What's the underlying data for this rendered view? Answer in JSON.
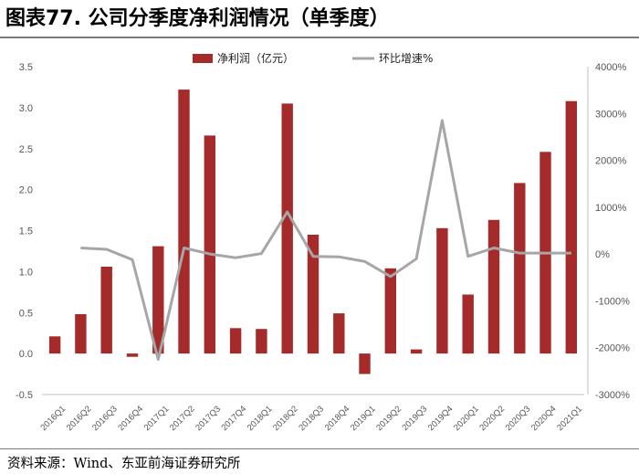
{
  "title": "图表77. 公司分季度净利润情况（单季度）",
  "source": "资料来源：Wind、东亚前海证券研究所",
  "chart_data": {
    "type": "bar+line",
    "categories": [
      "2016Q1",
      "2016Q2",
      "2016Q3",
      "2016Q4",
      "2017Q1",
      "2017Q2",
      "2017Q3",
      "2017Q4",
      "2018Q1",
      "2018Q2",
      "2018Q3",
      "2018Q4",
      "2019Q1",
      "2019Q2",
      "2019Q3",
      "2019Q4",
      "2020Q1",
      "2020Q2",
      "2020Q3",
      "2020Q4",
      "2021Q1"
    ],
    "series": [
      {
        "name": "净利润（亿元）",
        "type": "bar",
        "axis": "left",
        "color": "#a52a2a",
        "values": [
          0.21,
          0.48,
          1.06,
          -0.04,
          1.31,
          3.22,
          2.66,
          0.31,
          0.3,
          3.05,
          1.45,
          0.49,
          -0.25,
          1.04,
          0.05,
          1.53,
          0.72,
          1.63,
          2.08,
          2.46,
          3.08
        ]
      },
      {
        "name": "环比增速%",
        "type": "line",
        "axis": "right",
        "color": "#a6a6a6",
        "values": [
          null,
          130,
          100,
          -120,
          -2250,
          130,
          0,
          -80,
          10,
          900,
          -50,
          -60,
          -160,
          -480,
          -100,
          2850,
          -50,
          130,
          20,
          20,
          20
        ]
      }
    ],
    "left_axis": {
      "ylim": [
        -0.5,
        3.5
      ],
      "ticks": [
        "-0.5",
        "0.0",
        "0.5",
        "1.0",
        "1.5",
        "2.0",
        "2.5",
        "3.0",
        "3.5"
      ]
    },
    "right_axis": {
      "ylim": [
        -3000,
        4000
      ],
      "ticks": [
        "-3000%",
        "-2000%",
        "-1000%",
        "0%",
        "1000%",
        "2000%",
        "3000%",
        "4000%"
      ]
    },
    "legend_position": "top-center",
    "grid": false
  }
}
